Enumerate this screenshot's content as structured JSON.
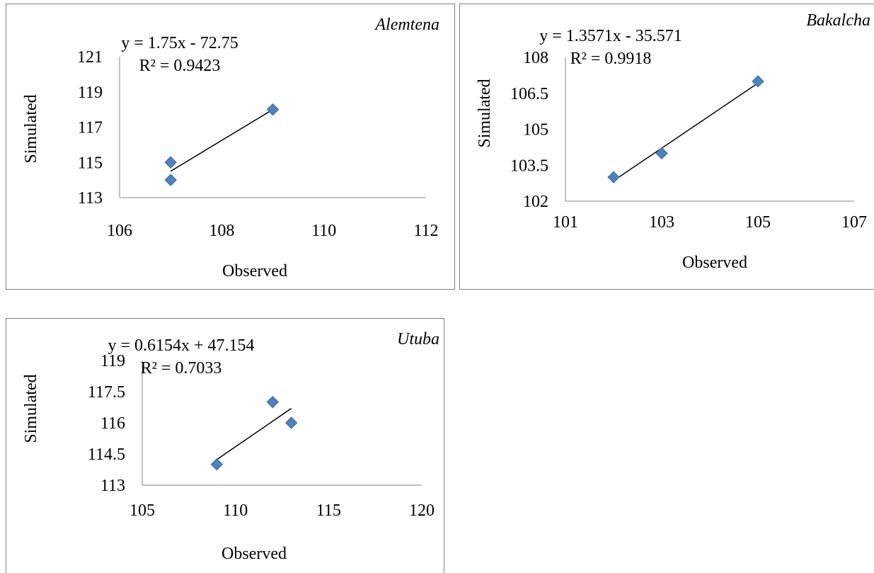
{
  "chart_data": [
    {
      "type": "scatter",
      "title": "Alemtena",
      "xlabel": "Observed",
      "ylabel": "Simulated",
      "xlim": [
        106,
        112
      ],
      "ylim": [
        113,
        121
      ],
      "xticks": [
        "106",
        "108",
        "110",
        "112"
      ],
      "yticks": [
        "113",
        "115",
        "117",
        "119",
        "121"
      ],
      "points": [
        [
          107,
          114
        ],
        [
          107,
          115
        ],
        [
          109,
          118
        ]
      ],
      "trendline": {
        "slope": 1.75,
        "intercept": -72.75,
        "x_range": [
          107,
          109
        ]
      },
      "equation": "y = 1.75x - 72.75",
      "r2": "R² = 0.9423",
      "marker_color": "#4f81bd",
      "grid": false
    },
    {
      "type": "scatter",
      "title": "Bakalcha",
      "xlabel": "Observed",
      "ylabel": "Simulated",
      "xlim": [
        101,
        107
      ],
      "ylim": [
        102,
        108
      ],
      "xticks": [
        "101",
        "103",
        "105",
        "107"
      ],
      "yticks": [
        "102",
        "103.5",
        "105",
        "106.5",
        "108"
      ],
      "points": [
        [
          102,
          103
        ],
        [
          103,
          104
        ],
        [
          105,
          107
        ]
      ],
      "trendline": {
        "slope": 1.3571,
        "intercept": -35.571,
        "x_range": [
          102,
          105
        ]
      },
      "equation": "y = 1.3571x - 35.571",
      "r2": "R² = 0.9918",
      "marker_color": "#4f81bd",
      "grid": false
    },
    {
      "type": "scatter",
      "title": "Utuba",
      "xlabel": "Observed",
      "ylabel": "Simulated",
      "xlim": [
        105,
        120
      ],
      "ylim": [
        113,
        119
      ],
      "xticks": [
        "105",
        "110",
        "115",
        "120"
      ],
      "yticks": [
        "113",
        "114.5",
        "116",
        "117.5",
        "119"
      ],
      "points": [
        [
          109,
          114
        ],
        [
          112,
          117
        ],
        [
          113,
          116
        ]
      ],
      "trendline": {
        "slope": 0.6154,
        "intercept": 47.154,
        "x_range": [
          109,
          113
        ]
      },
      "equation": "y = 0.6154x + 47.154",
      "r2": "R² = 0.7033",
      "marker_color": "#4f81bd",
      "grid": false
    }
  ]
}
